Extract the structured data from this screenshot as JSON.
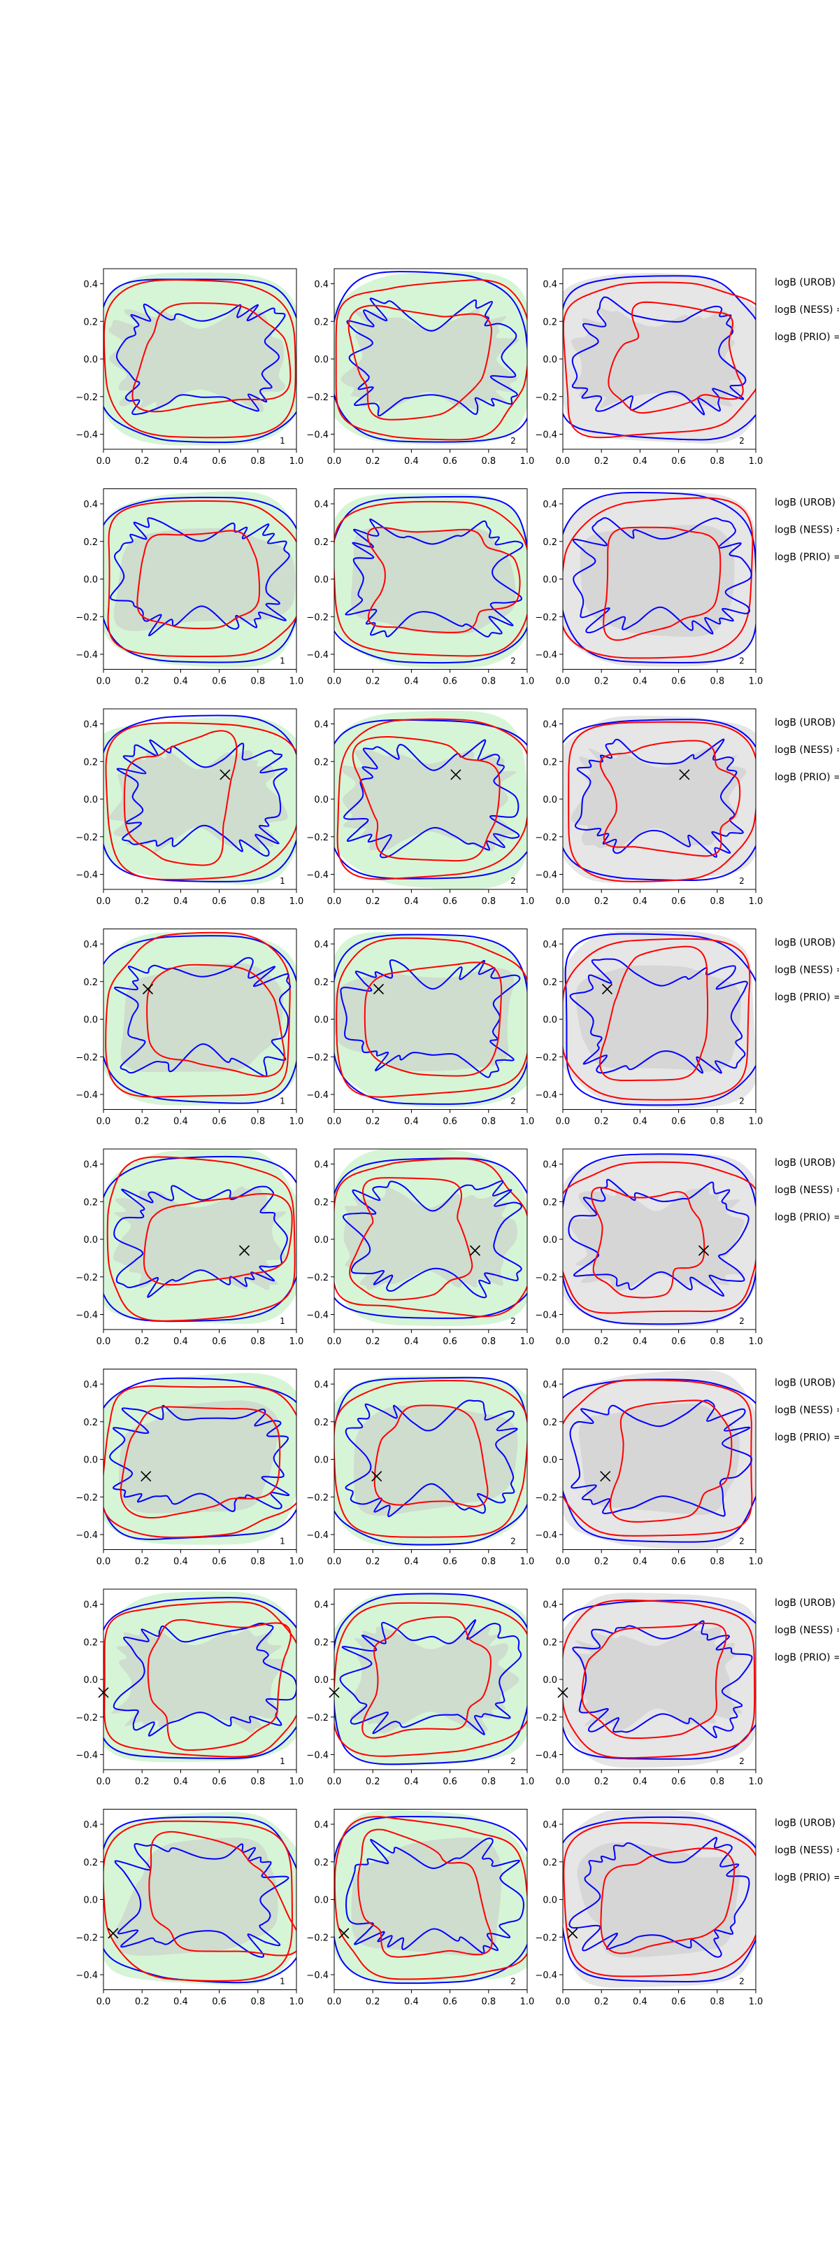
{
  "chart_data": {
    "type": "contour-grid",
    "rows": 8,
    "cols": 3,
    "xlim": [
      0.0,
      1.0
    ],
    "ylim": [
      -0.48,
      0.48
    ],
    "x_ticks": [
      "0.0",
      "0.2",
      "0.4",
      "0.6",
      "0.8",
      "1.0"
    ],
    "y_ticks": [
      "0.4",
      "0.2",
      "0.0",
      "−0.2",
      "−0.4"
    ],
    "panel_numbers": [
      "1",
      "2",
      "2"
    ],
    "side_labels": [
      "logB (UROB) =",
      "logB (NESS) =",
      "logB (PRIO) ="
    ],
    "colors": {
      "background_green": "#d6f5d6",
      "background_gray": "#e6e6e6",
      "inner_gray": "#c8c8c8",
      "red_contour": "#ff0000",
      "blue_contour": "#0000ff",
      "marker": "#000000"
    },
    "markers": [
      null,
      null,
      {
        "x": 0.63,
        "y": 0.13
      },
      {
        "x": 0.23,
        "y": 0.16
      },
      {
        "x": 0.73,
        "y": -0.06
      },
      {
        "x": 0.22,
        "y": -0.09
      },
      {
        "x": 0.0,
        "y": -0.07
      },
      {
        "x": 0.05,
        "y": -0.18
      }
    ]
  }
}
